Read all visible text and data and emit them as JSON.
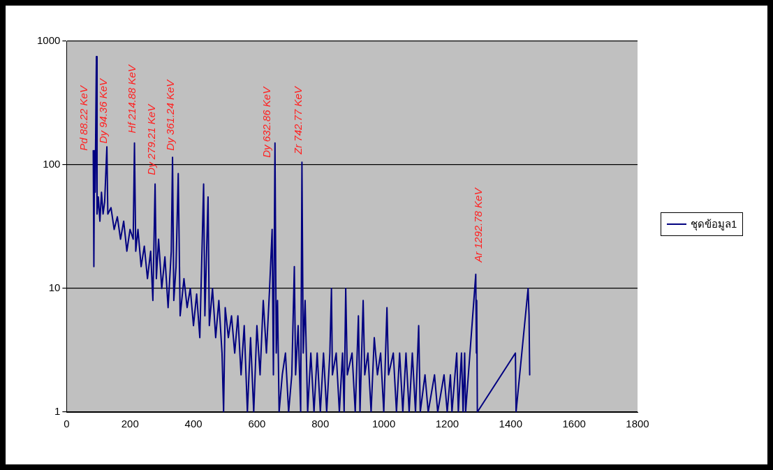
{
  "chart_data": {
    "type": "line",
    "log": "y",
    "grid": "y",
    "legend": "right",
    "marker": "none",
    "line_style": "solid",
    "xlim": [
      0,
      1800
    ],
    "xticks": [
      0,
      200,
      400,
      600,
      800,
      1000,
      1200,
      1400,
      1600,
      1800
    ],
    "ylim": [
      1,
      1000
    ],
    "yticks": [
      1,
      10,
      100,
      1000
    ],
    "series": [
      {
        "name": "ชุดข้อมูล1",
        "color": "#000080",
        "x": [
          84,
          86,
          88,
          90,
          94,
          96,
          100,
          105,
          110,
          115,
          120,
          127,
          130,
          140,
          150,
          160,
          170,
          180,
          190,
          200,
          210,
          214,
          218,
          225,
          235,
          245,
          255,
          265,
          272,
          279,
          283,
          290,
          300,
          310,
          320,
          330,
          334,
          338,
          345,
          352,
          358,
          370,
          380,
          390,
          400,
          410,
          420,
          432,
          436,
          446,
          450,
          460,
          470,
          480,
          490,
          495,
          500,
          510,
          520,
          530,
          540,
          550,
          560,
          570,
          580,
          590,
          600,
          610,
          620,
          630,
          640,
          648,
          652,
          657,
          661,
          665,
          670,
          680,
          690,
          700,
          710,
          718,
          722,
          730,
          738,
          742,
          746,
          752,
          760,
          770,
          780,
          790,
          800,
          810,
          820,
          830,
          835,
          838,
          850,
          860,
          870,
          875,
          880,
          885,
          900,
          910,
          920,
          925,
          935,
          940,
          950,
          960,
          970,
          980,
          990,
          1000,
          1010,
          1015,
          1030,
          1040,
          1050,
          1060,
          1070,
          1080,
          1090,
          1100,
          1110,
          1115,
          1130,
          1140,
          1160,
          1170,
          1190,
          1200,
          1210,
          1215,
          1230,
          1235,
          1245,
          1250,
          1255,
          1258,
          1290,
          1292,
          1293,
          1295,
          1415,
          1417,
          1455,
          1458,
          1460
        ],
        "values": [
          130,
          15,
          130,
          60,
          750,
          40,
          55,
          35,
          60,
          40,
          50,
          140,
          40,
          45,
          30,
          38,
          25,
          35,
          20,
          30,
          25,
          150,
          20,
          30,
          15,
          22,
          12,
          20,
          8,
          70,
          12,
          25,
          10,
          18,
          7,
          20,
          115,
          8,
          15,
          85,
          6,
          12,
          7,
          10,
          5,
          9,
          4,
          70,
          6,
          55,
          5,
          10,
          4,
          8,
          3,
          1,
          7,
          4,
          6,
          3,
          6,
          2,
          5,
          1,
          4,
          1,
          5,
          2,
          8,
          3,
          10,
          30,
          2,
          150,
          3,
          8,
          1,
          2,
          3,
          1,
          2,
          15,
          2,
          5,
          1,
          105,
          3,
          8,
          1,
          3,
          1,
          3,
          1,
          3,
          1,
          3,
          10,
          2,
          3,
          1,
          3,
          1,
          10,
          2,
          3,
          1,
          6,
          1,
          8,
          2,
          3,
          1,
          4,
          2,
          3,
          1,
          7,
          2,
          3,
          1,
          3,
          1,
          3,
          1,
          3,
          1,
          5,
          1,
          2,
          1,
          2,
          1,
          2,
          1,
          2,
          1,
          3,
          1,
          3,
          1,
          3,
          1,
          13,
          3,
          8,
          1,
          3,
          1,
          10,
          6,
          2
        ]
      }
    ],
    "annotations": [
      "Pd 88.22 KeV",
      "Dy 94.36 KeV",
      "Hf 214.88 KeV",
      "Dy 279.21 KeV",
      "Dy 361.24 KeV",
      "Dy 632.86 KeV",
      "Zr 742.77 KeV",
      "Ar 1292.78 KeV"
    ]
  }
}
